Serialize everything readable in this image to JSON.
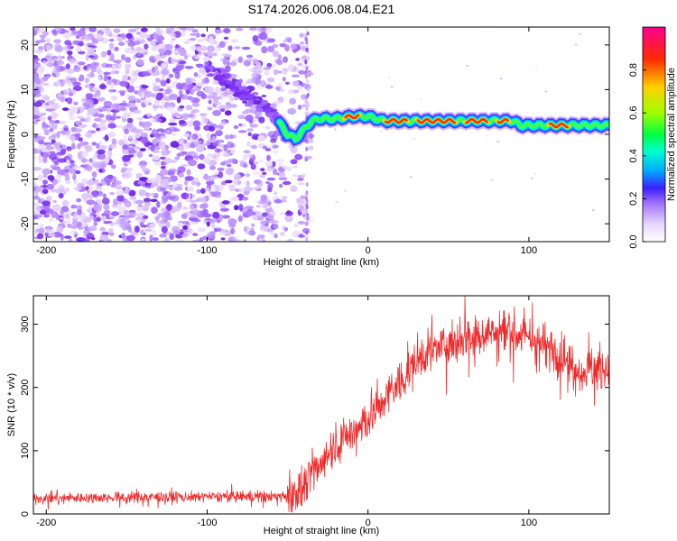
{
  "title": "S174.2026.006.08.04.E21",
  "chart_data": [
    {
      "type": "heatmap",
      "name": "spectrogram",
      "xlabel": "Height of straight line (km)",
      "ylabel": "Frequency (Hz)",
      "xlim": [
        -208,
        150
      ],
      "ylim": [
        -24,
        24
      ],
      "xticks": [
        -200,
        -100,
        0,
        100
      ],
      "yticks": [
        -20,
        -10,
        0,
        10,
        20
      ],
      "xtick_labels": [
        "-200",
        "-100",
        "0",
        "100"
      ],
      "ytick_labels": [
        "-20",
        "-10",
        "0",
        "10",
        "20"
      ],
      "colorbar": {
        "label": "Normalized spectral amplitude",
        "range": [
          0,
          1
        ],
        "ticks": [
          0.0,
          0.2,
          0.4,
          0.6,
          0.8
        ],
        "tick_labels": [
          "0.0",
          "0.2",
          "0.4",
          "0.6",
          "0.8"
        ]
      },
      "ridge": {
        "x": [
          -80,
          -60,
          -50,
          -45,
          -40,
          -35,
          -30,
          -20,
          -10,
          0,
          10,
          20,
          40,
          60,
          80,
          90,
          95,
          110,
          130,
          150
        ],
        "y": [
          10,
          5,
          0,
          -1,
          1,
          3,
          3.5,
          3.5,
          4,
          4,
          3,
          3,
          3,
          3,
          3,
          3,
          2,
          2,
          2,
          2
        ]
      }
    },
    {
      "type": "line",
      "name": "snr",
      "xlabel": "Height of straight line (km)",
      "ylabel": "SNR (10 * v/v)",
      "xlim": [
        -208,
        150
      ],
      "ylim": [
        0,
        345
      ],
      "xticks": [
        -200,
        -100,
        0,
        100
      ],
      "yticks": [
        0,
        100,
        200,
        300
      ],
      "xtick_labels": [
        "-200",
        "-100",
        "0",
        "100"
      ],
      "ytick_labels": [
        "0",
        "100",
        "200",
        "300"
      ],
      "color": "#ee2a2a",
      "trend": {
        "x": [
          -208,
          -50,
          -40,
          -30,
          -20,
          -10,
          0,
          10,
          20,
          30,
          40,
          60,
          80,
          100,
          120,
          130,
          150
        ],
        "y": [
          25,
          28,
          40,
          80,
          110,
          130,
          150,
          180,
          210,
          240,
          260,
          280,
          290,
          280,
          250,
          230,
          230
        ]
      }
    }
  ]
}
